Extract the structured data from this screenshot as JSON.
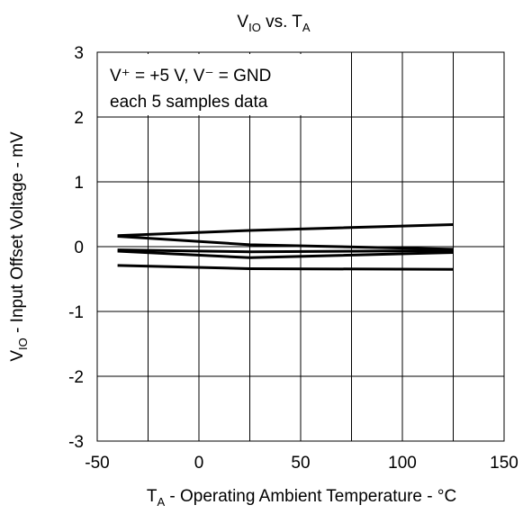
{
  "chart_data": {
    "type": "line",
    "title": {
      "main": "V",
      "sub": "IO",
      "mid": " vs. T",
      "sub2": "A"
    },
    "xlabel": {
      "main": "T",
      "sub": "A",
      "rest": " - Operating Ambient Temperature - °C"
    },
    "ylabel": {
      "main": "V",
      "sub": "IO",
      "rest": " - Input Offset Voltage - mV"
    },
    "xlim": [
      -50,
      150
    ],
    "ylim": [
      -3,
      3
    ],
    "x_ticks": [
      "-50",
      "0",
      "50",
      "100",
      "150"
    ],
    "y_ticks": [
      "3",
      "2",
      "1",
      "0",
      "-1",
      "-2",
      "-3"
    ],
    "grid": true,
    "annotation": {
      "line1": "V⁺ = +5 V, V⁻ = GND",
      "line2": "each 5 samples data"
    },
    "x": [
      -40,
      25,
      125
    ],
    "series": [
      {
        "values": [
          0.17,
          0.25,
          0.34
        ]
      },
      {
        "values": [
          0.16,
          0.03,
          -0.04
        ]
      },
      {
        "values": [
          -0.05,
          -0.08,
          -0.06
        ]
      },
      {
        "values": [
          -0.07,
          -0.17,
          -0.09
        ]
      },
      {
        "values": [
          -0.29,
          -0.34,
          -0.35
        ]
      }
    ]
  }
}
